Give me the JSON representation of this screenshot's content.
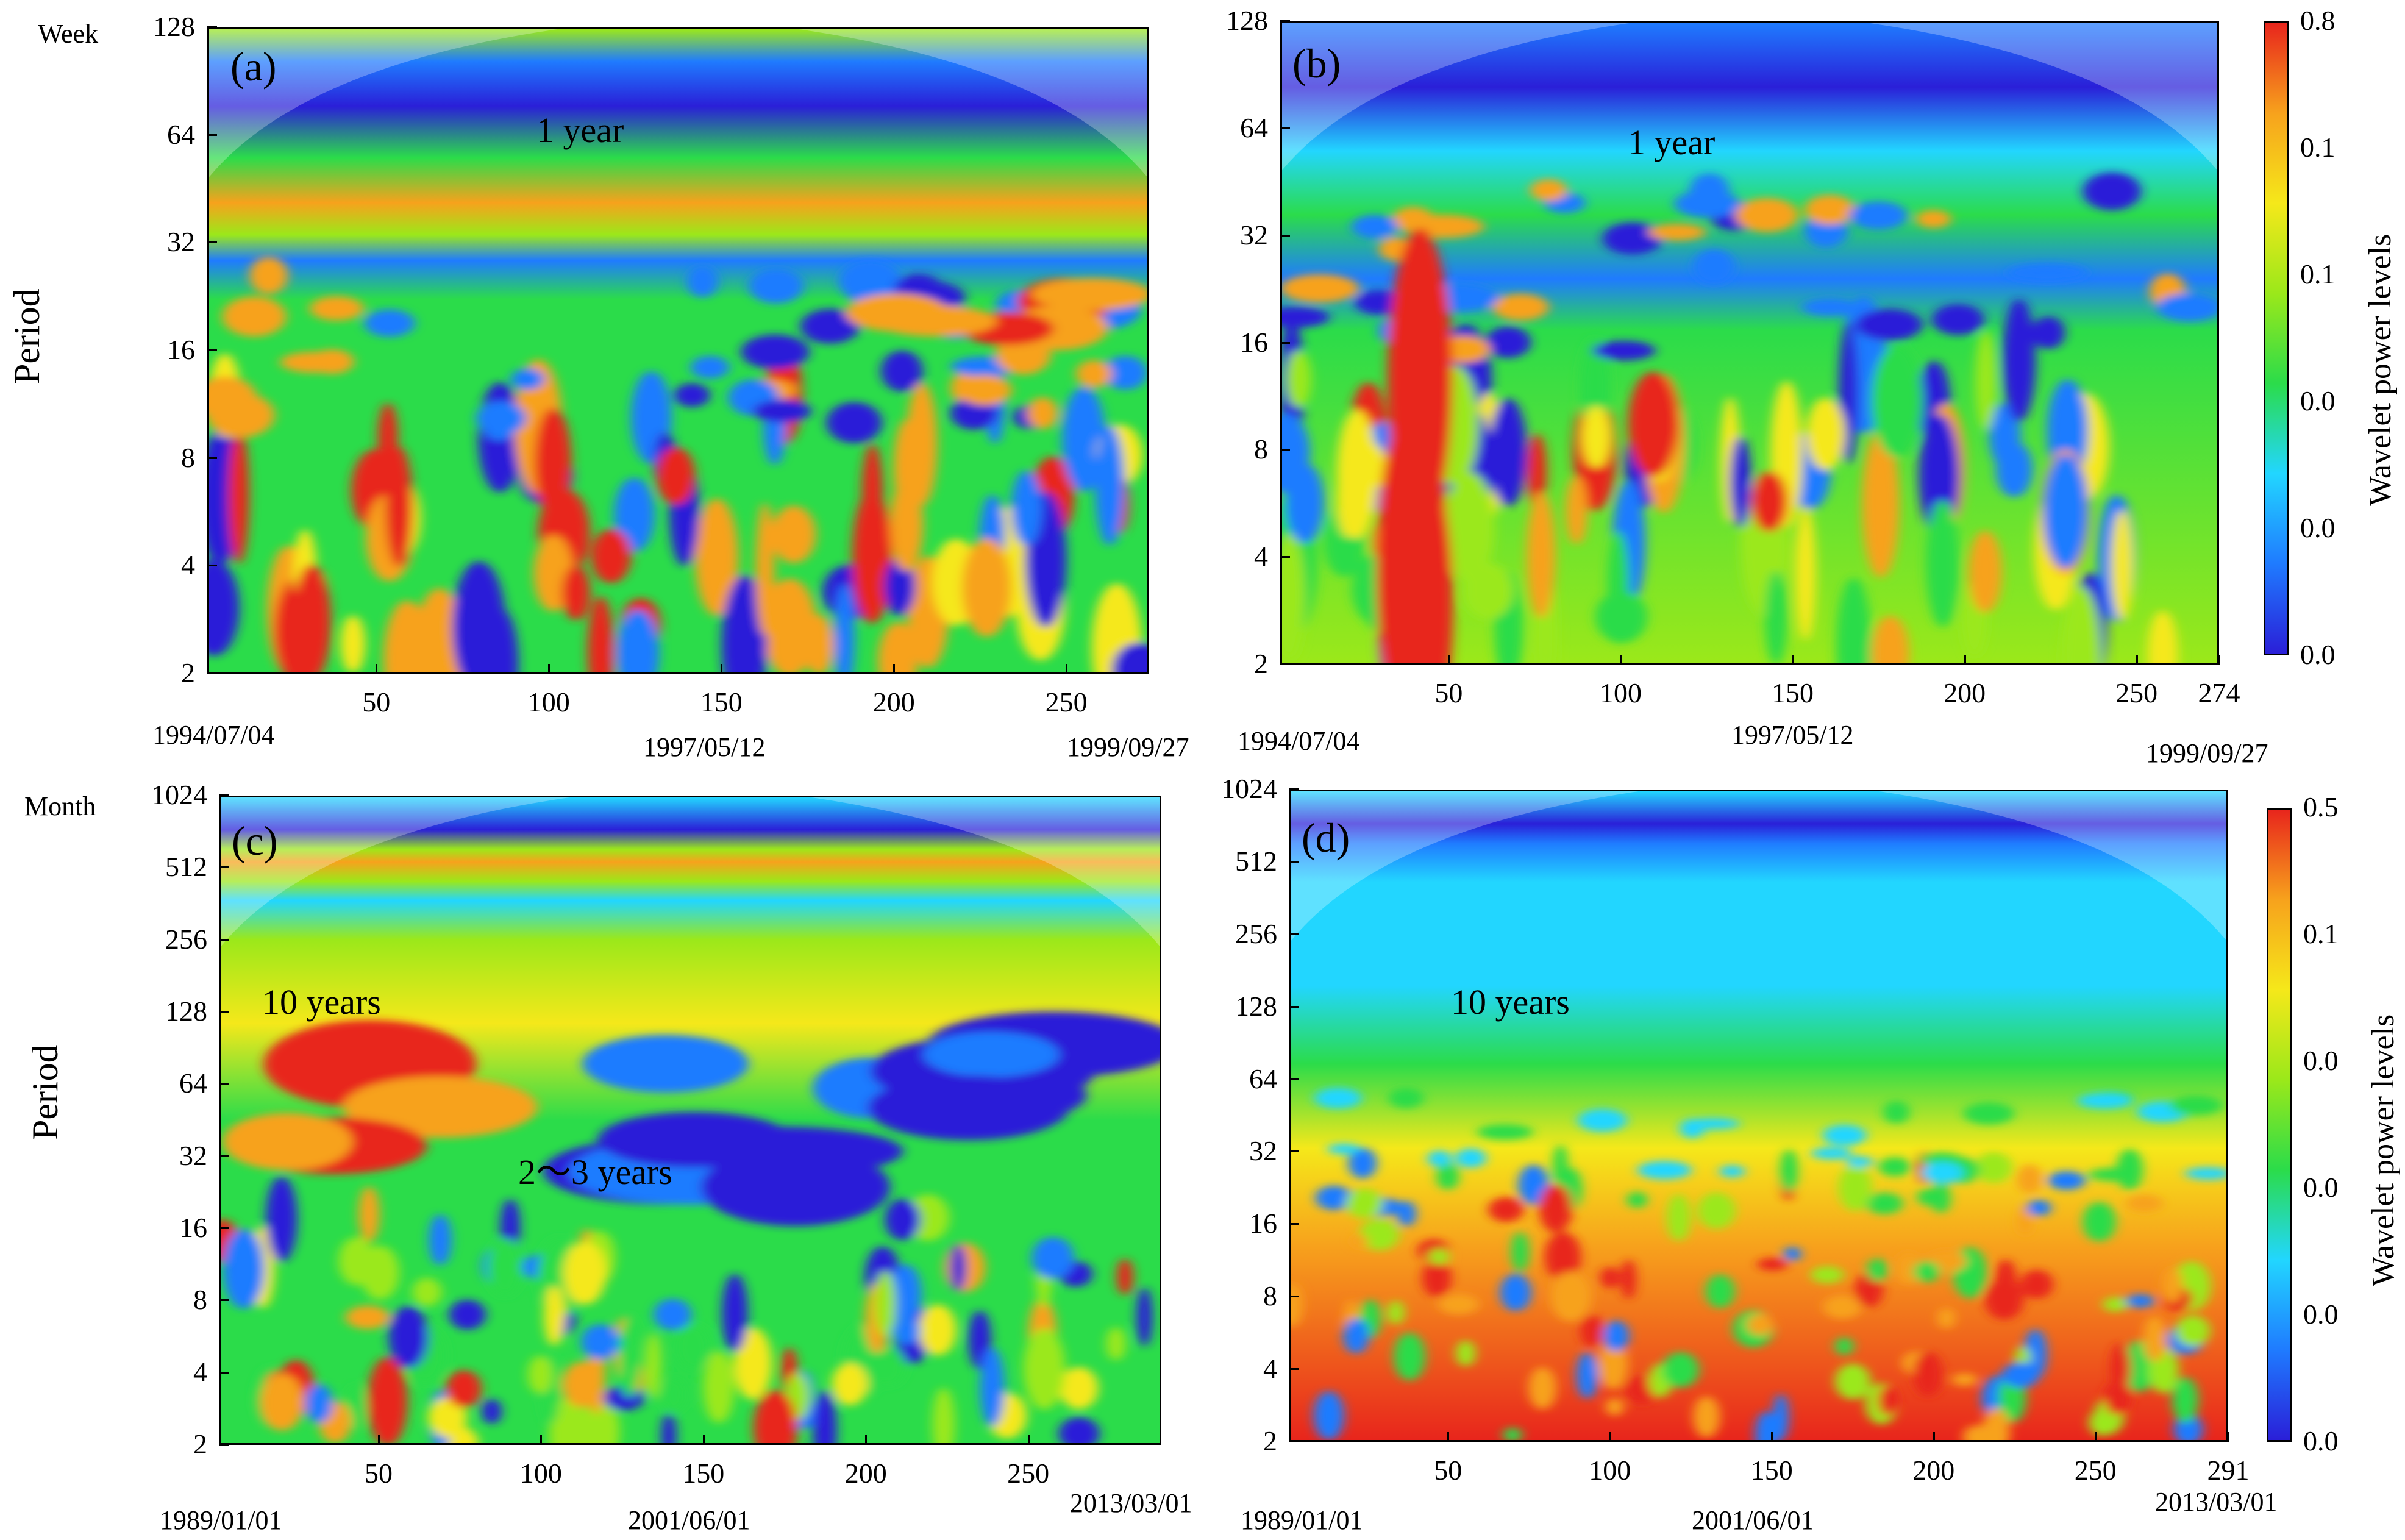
{
  "chart_data": [
    {
      "id": "a",
      "type": "heatmap",
      "panel_label": "(a)",
      "unit_label": "Week",
      "ylabel": "Period",
      "yticks": [
        "128",
        "64",
        "32",
        "16",
        "8",
        "4",
        "2"
      ],
      "xticks": [
        "50",
        "100",
        "150",
        "200",
        "250"
      ],
      "xrange": [
        1,
        274
      ],
      "ylog2range": [
        1,
        7
      ],
      "dates": [
        "1994/07/04",
        "1997/05/12",
        "1999/09/27"
      ],
      "annotations": [
        "1 year"
      ],
      "colorbar": null
    },
    {
      "id": "b",
      "type": "heatmap",
      "panel_label": "(b)",
      "unit_label": "",
      "ylabel": "",
      "yticks": [
        "128",
        "64",
        "32",
        "16",
        "8",
        "4",
        "2"
      ],
      "xticks": [
        "50",
        "100",
        "150",
        "200",
        "250",
        "274"
      ],
      "xrange": [
        1,
        274
      ],
      "ylog2range": [
        1,
        7
      ],
      "dates": [
        "1994/07/04",
        "1997/05/12",
        "1999/09/27"
      ],
      "annotations": [
        "1 year"
      ],
      "colorbar": {
        "title": "Wavelet power levels",
        "ticks": [
          "0.8",
          "0.1",
          "0.1",
          "0.0",
          "0.0",
          "0.0"
        ]
      }
    },
    {
      "id": "c",
      "type": "heatmap",
      "panel_label": "(c)",
      "unit_label": "Month",
      "ylabel": "Period",
      "yticks": [
        "1024",
        "512",
        "256",
        "128",
        "64",
        "32",
        "16",
        "8",
        "4",
        "2"
      ],
      "xticks": [
        "50",
        "100",
        "150",
        "200",
        "250"
      ],
      "xrange": [
        1,
        291
      ],
      "ylog2range": [
        1,
        10
      ],
      "dates": [
        "1989/01/01",
        "2001/06/01",
        "2013/03/01"
      ],
      "annotations": [
        "10 years",
        "2～3 years"
      ],
      "colorbar": null
    },
    {
      "id": "d",
      "type": "heatmap",
      "panel_label": "(d)",
      "unit_label": "",
      "ylabel": "",
      "yticks": [
        "1024",
        "512",
        "256",
        "128",
        "64",
        "32",
        "16",
        "8",
        "4",
        "2"
      ],
      "xticks": [
        "50",
        "100",
        "150",
        "200",
        "250",
        "291"
      ],
      "xrange": [
        1,
        291
      ],
      "ylog2range": [
        1,
        10
      ],
      "dates": [
        "1989/01/01",
        "2001/06/01",
        "2013/03/01"
      ],
      "annotations": [
        "10 years"
      ],
      "colorbar": {
        "title": "Wavelet power levels",
        "ticks": [
          "0.5",
          "0.1",
          "0.0",
          "0.0",
          "0.0",
          "0.0"
        ]
      }
    }
  ],
  "colors": {
    "scale": [
      "#2a1fd8",
      "#1f7bff",
      "#22d6ff",
      "#2bdc4a",
      "#9be81a",
      "#f5e81a",
      "#f7a21c",
      "#e8251c"
    ]
  }
}
